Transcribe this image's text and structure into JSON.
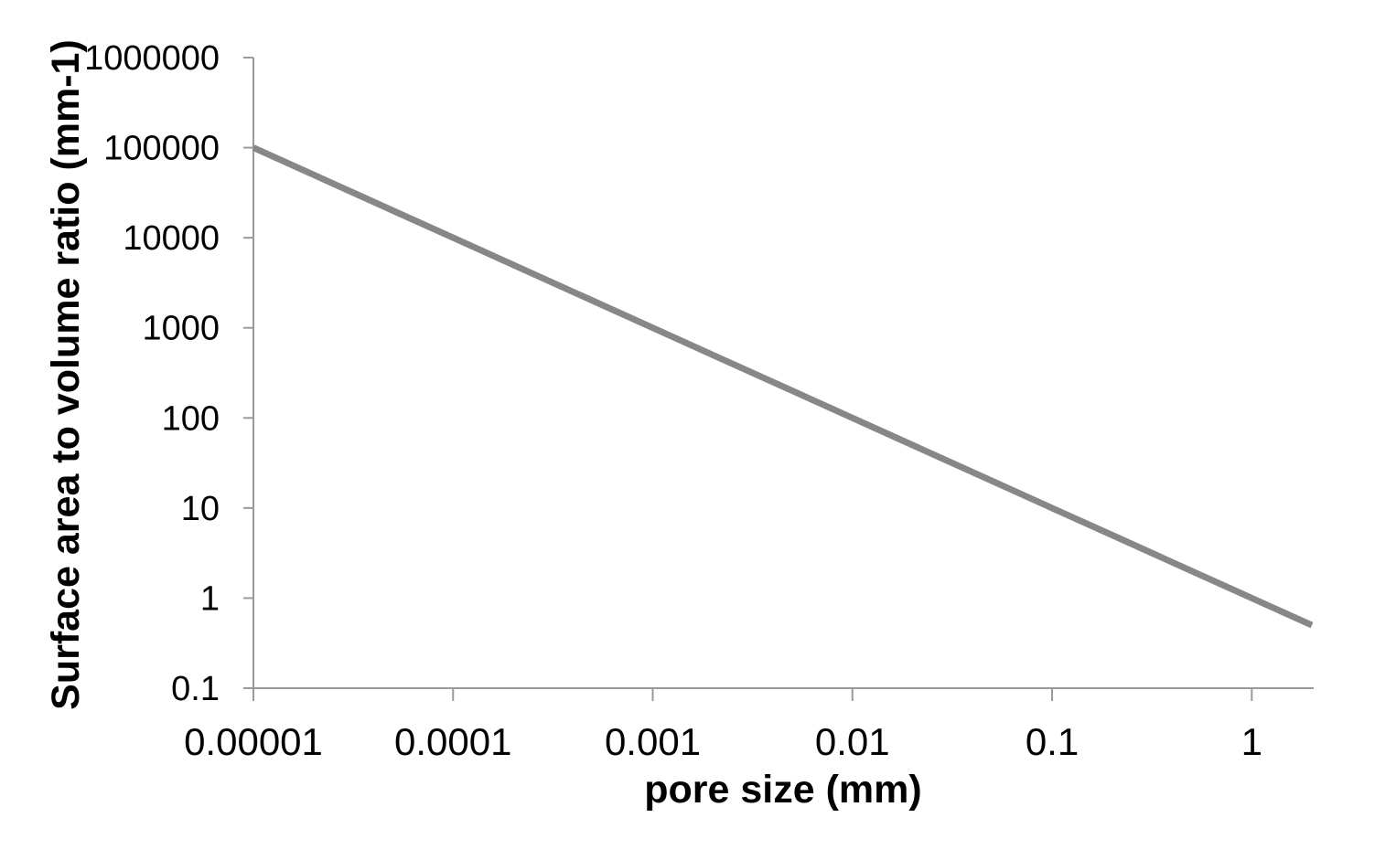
{
  "chart_data": {
    "type": "line",
    "title": "",
    "xlabel": "pore size (mm)",
    "ylabel": "Surface area to volume ratio (mm-1)",
    "x_scale": "log",
    "y_scale": "log",
    "xlim": [
      1e-05,
      2
    ],
    "ylim": [
      0.1,
      1000000
    ],
    "grid": false,
    "legend": null,
    "markers": false,
    "x_tick_values": [
      1e-05,
      0.0001,
      0.001,
      0.01,
      0.1,
      1
    ],
    "x_tick_labels": [
      "0.00001",
      "0.0001",
      "0.001",
      "0.01",
      "0.1",
      "1"
    ],
    "y_tick_values": [
      0.1,
      1,
      10,
      100,
      1000,
      10000,
      100000,
      1000000
    ],
    "y_tick_labels": [
      "0.1",
      "1",
      "10",
      "100",
      "1000",
      "10000",
      "100000",
      "1000000"
    ],
    "series": [
      {
        "name": "surface-area-to-volume-ratio",
        "x": [
          1e-05,
          2e-05,
          5e-05,
          0.0001,
          0.0002,
          0.0005,
          0.001,
          0.002,
          0.005,
          0.01,
          0.02,
          0.05,
          0.1,
          0.2,
          0.5,
          1,
          2
        ],
        "y": [
          100000,
          50000,
          20000,
          10000,
          5000,
          2000,
          1000,
          500,
          200,
          100,
          50,
          20,
          10,
          5,
          2,
          1,
          0.5
        ]
      }
    ],
    "colors": {
      "line": "#878787",
      "axis": "#9A9A9A",
      "text": "#000000",
      "background": "#FFFFFF"
    }
  }
}
